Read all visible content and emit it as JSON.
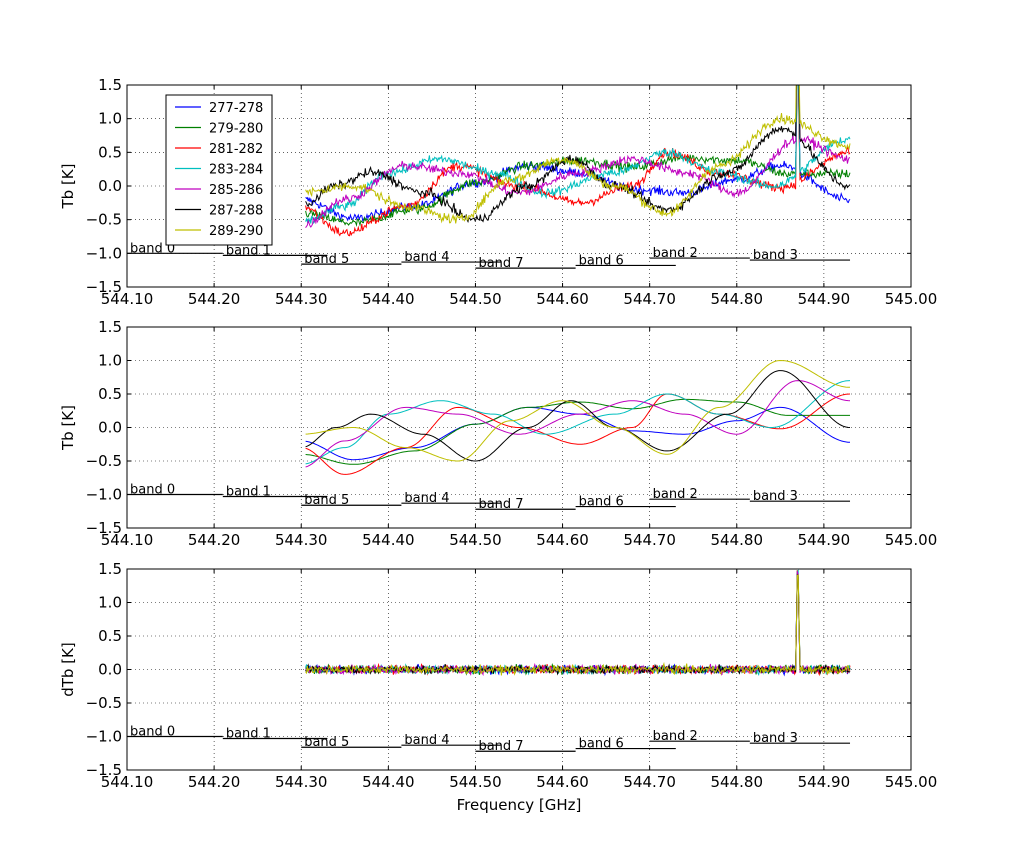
{
  "chart_data": {
    "type": "line",
    "xlabel": "Frequency [GHz]",
    "xlim": [
      544.1,
      545.0
    ],
    "xticks": [
      544.1,
      544.2,
      544.3,
      544.4,
      544.5,
      544.6,
      544.7,
      544.8,
      544.9,
      545.0
    ],
    "xtick_labels": [
      "544.10",
      "544.20",
      "544.30",
      "544.40",
      "544.50",
      "544.60",
      "544.70",
      "544.80",
      "544.90",
      "545.00"
    ],
    "grid": "dotted",
    "legend": {
      "placement": "upper-left of top panel",
      "entries": [
        {
          "name": "277-278",
          "color": "#0000ff"
        },
        {
          "name": "279-280",
          "color": "#008000"
        },
        {
          "name": "281-282",
          "color": "#ff0000"
        },
        {
          "name": "283-284",
          "color": "#00bfbf"
        },
        {
          "name": "285-286",
          "color": "#bf00bf"
        },
        {
          "name": "287-288",
          "color": "#000000"
        },
        {
          "name": "289-290",
          "color": "#bfbf00"
        }
      ]
    },
    "bands": [
      {
        "label": "band 0",
        "x0": 544.1,
        "x1": 544.21,
        "y": -1.0
      },
      {
        "label": "band 1",
        "x0": 544.21,
        "x1": 544.33,
        "y": -1.03
      },
      {
        "label": "band 5",
        "x0": 544.3,
        "x1": 544.415,
        "y": -1.16
      },
      {
        "label": "band 4",
        "x0": 544.415,
        "x1": 544.53,
        "y": -1.13
      },
      {
        "label": "band 7",
        "x0": 544.5,
        "x1": 544.615,
        "y": -1.22
      },
      {
        "label": "band 6",
        "x0": 544.615,
        "x1": 544.73,
        "y": -1.18
      },
      {
        "label": "band 2",
        "x0": 544.7,
        "x1": 544.815,
        "y": -1.07
      },
      {
        "label": "band 3",
        "x0": 544.815,
        "x1": 544.93,
        "y": -1.1
      }
    ],
    "panels": [
      {
        "ylabel": "Tb [K]",
        "ylim": [
          -1.5,
          1.5
        ],
        "yticks": [
          -1.5,
          -1.0,
          -0.5,
          0.0,
          0.5,
          1.0,
          1.5
        ],
        "ytick_labels": [
          "−1.5",
          "−1.0",
          "−0.5",
          "0.0",
          "0.5",
          "1.0",
          "1.5"
        ],
        "style": "noisy",
        "noise": 0.07,
        "spike_at": 544.87,
        "spike_height": 2.0,
        "legend": true
      },
      {
        "ylabel": "Tb [K]",
        "ylim": [
          -1.5,
          1.5
        ],
        "yticks": [
          -1.5,
          -1.0,
          -0.5,
          0.0,
          0.5,
          1.0,
          1.5
        ],
        "ytick_labels": [
          "−1.5",
          "−1.0",
          "−0.5",
          "0.0",
          "0.5",
          "1.0",
          "1.5"
        ],
        "style": "smooth",
        "noise": 0,
        "spike_at": null,
        "spike_height": 0,
        "legend": false
      },
      {
        "ylabel": "dTb [K]",
        "ylim": [
          -1.5,
          1.5
        ],
        "yticks": [
          -1.5,
          -1.0,
          -0.5,
          0.0,
          0.5,
          1.0,
          1.5
        ],
        "ytick_labels": [
          "−1.5",
          "−1.0",
          "−0.5",
          "0.0",
          "0.5",
          "1.0",
          "1.5"
        ],
        "style": "residual",
        "noise": 0.06,
        "spike_at": 544.87,
        "spike_height": 1.8,
        "legend": false
      }
    ],
    "series": [
      {
        "name": "277-278",
        "color": "#0000ff",
        "x_start": 544.305,
        "x_end": 544.93,
        "smooth_knots": [
          [
            544.3,
            -0.2
          ],
          [
            544.36,
            -0.48
          ],
          [
            544.43,
            -0.3
          ],
          [
            544.5,
            0.05
          ],
          [
            544.56,
            0.3
          ],
          [
            544.62,
            0.2
          ],
          [
            544.68,
            -0.05
          ],
          [
            544.74,
            -0.1
          ],
          [
            544.8,
            0.1
          ],
          [
            544.85,
            0.3
          ],
          [
            544.93,
            -0.22
          ]
        ]
      },
      {
        "name": "279-280",
        "color": "#008000",
        "x_start": 544.305,
        "x_end": 544.93,
        "smooth_knots": [
          [
            544.3,
            -0.4
          ],
          [
            544.36,
            -0.55
          ],
          [
            544.43,
            -0.35
          ],
          [
            544.5,
            0.05
          ],
          [
            544.56,
            0.3
          ],
          [
            544.62,
            0.38
          ],
          [
            544.68,
            0.28
          ],
          [
            544.74,
            0.42
          ],
          [
            544.8,
            0.38
          ],
          [
            544.86,
            0.18
          ],
          [
            544.93,
            0.18
          ]
        ]
      },
      {
        "name": "281-282",
        "color": "#ff0000",
        "x_start": 544.305,
        "x_end": 544.93,
        "smooth_knots": [
          [
            544.3,
            -0.3
          ],
          [
            544.35,
            -0.7
          ],
          [
            544.42,
            -0.3
          ],
          [
            544.48,
            0.3
          ],
          [
            544.55,
            0.0
          ],
          [
            544.62,
            -0.25
          ],
          [
            544.68,
            0.0
          ],
          [
            544.72,
            0.5
          ],
          [
            544.78,
            0.2
          ],
          [
            544.85,
            -0.02
          ],
          [
            544.93,
            0.5
          ]
        ]
      },
      {
        "name": "283-284",
        "color": "#00bfbf",
        "x_start": 544.305,
        "x_end": 544.93,
        "smooth_knots": [
          [
            544.3,
            -0.55
          ],
          [
            544.35,
            -0.3
          ],
          [
            544.4,
            0.2
          ],
          [
            544.46,
            0.4
          ],
          [
            544.52,
            0.2
          ],
          [
            544.58,
            -0.1
          ],
          [
            544.66,
            0.2
          ],
          [
            544.72,
            0.5
          ],
          [
            544.78,
            0.2
          ],
          [
            544.84,
            0.0
          ],
          [
            544.93,
            0.7
          ]
        ]
      },
      {
        "name": "285-286",
        "color": "#bf00bf",
        "x_start": 544.305,
        "x_end": 544.93,
        "smooth_knots": [
          [
            544.3,
            -0.6
          ],
          [
            544.35,
            -0.2
          ],
          [
            544.42,
            0.3
          ],
          [
            544.48,
            0.2
          ],
          [
            544.55,
            -0.1
          ],
          [
            544.62,
            0.2
          ],
          [
            544.68,
            0.4
          ],
          [
            544.74,
            0.2
          ],
          [
            544.8,
            -0.1
          ],
          [
            544.87,
            0.7
          ],
          [
            544.93,
            0.4
          ]
        ]
      },
      {
        "name": "287-288",
        "color": "#000000",
        "x_start": 544.305,
        "x_end": 544.93,
        "smooth_knots": [
          [
            544.3,
            -0.3
          ],
          [
            544.34,
            0.0
          ],
          [
            544.38,
            0.2
          ],
          [
            544.44,
            -0.1
          ],
          [
            544.5,
            -0.5
          ],
          [
            544.56,
            0.0
          ],
          [
            544.61,
            0.4
          ],
          [
            544.66,
            0.0
          ],
          [
            544.72,
            -0.35
          ],
          [
            544.79,
            0.2
          ],
          [
            544.85,
            0.85
          ],
          [
            544.93,
            0.0
          ]
        ]
      },
      {
        "name": "289-290",
        "color": "#bfbf00",
        "x_start": 544.305,
        "x_end": 544.93,
        "smooth_knots": [
          [
            544.3,
            -0.1
          ],
          [
            544.36,
            0.0
          ],
          [
            544.42,
            -0.3
          ],
          [
            544.48,
            -0.5
          ],
          [
            544.54,
            0.1
          ],
          [
            544.6,
            0.4
          ],
          [
            544.66,
            0.0
          ],
          [
            544.72,
            -0.4
          ],
          [
            544.78,
            0.3
          ],
          [
            544.85,
            1.0
          ],
          [
            544.93,
            0.6
          ]
        ]
      }
    ]
  }
}
